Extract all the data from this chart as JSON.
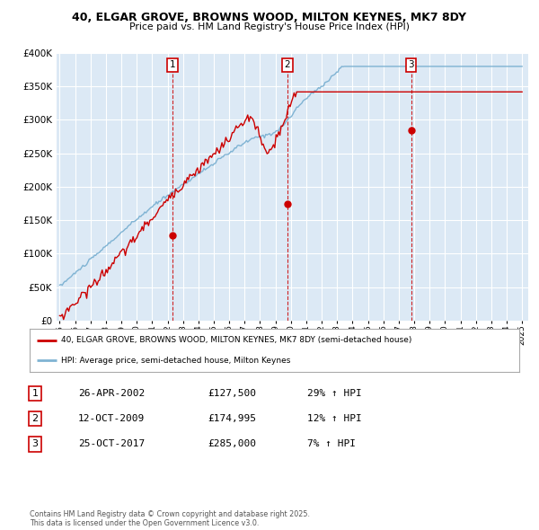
{
  "title_line1": "40, ELGAR GROVE, BROWNS WOOD, MILTON KEYNES, MK7 8DY",
  "title_line2": "Price paid vs. HM Land Registry's House Price Index (HPI)",
  "bg_color": "#dce9f5",
  "red_line_color": "#cc0000",
  "blue_line_color": "#7fb3d3",
  "ylim": [
    0,
    400000
  ],
  "yticks": [
    0,
    50000,
    100000,
    150000,
    200000,
    250000,
    300000,
    350000,
    400000
  ],
  "ytick_labels": [
    "£0",
    "£50K",
    "£100K",
    "£150K",
    "£200K",
    "£250K",
    "£300K",
    "£350K",
    "£400K"
  ],
  "transactions": [
    {
      "date_num": 2002.32,
      "price": 127500,
      "label": "1"
    },
    {
      "date_num": 2009.78,
      "price": 174995,
      "label": "2"
    },
    {
      "date_num": 2017.81,
      "price": 285000,
      "label": "3"
    }
  ],
  "legend_entries": [
    {
      "label": "40, ELGAR GROVE, BROWNS WOOD, MILTON KEYNES, MK7 8DY (semi-detached house)",
      "color": "#cc0000"
    },
    {
      "label": "HPI: Average price, semi-detached house, Milton Keynes",
      "color": "#7fb3d3"
    }
  ],
  "table_rows": [
    {
      "num": "1",
      "date": "26-APR-2002",
      "price": "£127,500",
      "hpi": "29% ↑ HPI"
    },
    {
      "num": "2",
      "date": "12-OCT-2009",
      "price": "£174,995",
      "hpi": "12% ↑ HPI"
    },
    {
      "num": "3",
      "date": "25-OCT-2017",
      "price": "£285,000",
      "hpi": "7% ↑ HPI"
    }
  ],
  "footnote": "Contains HM Land Registry data © Crown copyright and database right 2025.\nThis data is licensed under the Open Government Licence v3.0."
}
